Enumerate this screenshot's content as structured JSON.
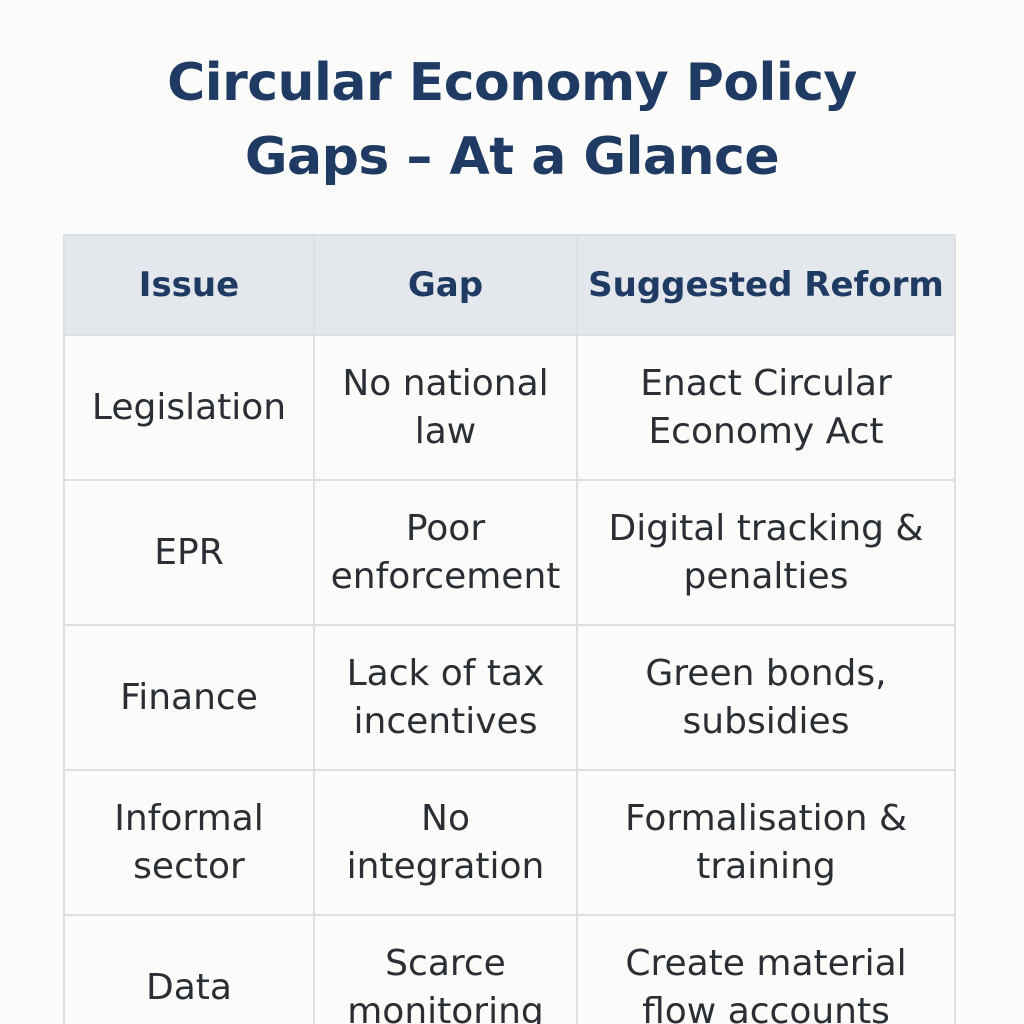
{
  "title": {
    "line1": "Circular Economy Policy",
    "line2": "Gaps – At a Glance"
  },
  "table": {
    "headers": [
      "Issue",
      "Gap",
      "Suggested Reform"
    ],
    "rows": [
      [
        "Legislation",
        "No national law",
        "Enact Circular Economy Act"
      ],
      [
        "EPR",
        "Poor enforcement",
        "Digital tracking & penalties"
      ],
      [
        "Finance",
        "Lack of tax incentives",
        "Green bonds, subsidies"
      ],
      [
        "Informal sector",
        "No integration",
        "Formalisation & training"
      ],
      [
        "Data",
        "Scarce monitoring",
        "Create material flow accounts"
      ]
    ]
  },
  "colors": {
    "title": "#1f3a63",
    "header_bg": "#e4e7eb",
    "border": "#dcdfe3",
    "text": "#2a2f36"
  }
}
